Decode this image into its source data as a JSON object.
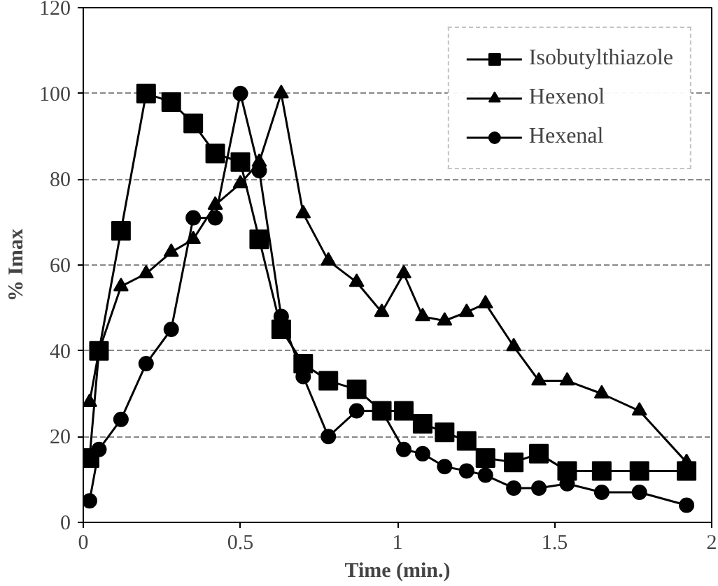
{
  "chart_data": {
    "type": "line",
    "xlabel": "Time (min.)",
    "ylabel": "% Imax",
    "x": [
      0.02,
      0.05,
      0.12,
      0.2,
      0.28,
      0.35,
      0.42,
      0.5,
      0.56,
      0.63,
      0.7,
      0.78,
      0.87,
      0.95,
      1.02,
      1.08,
      1.15,
      1.22,
      1.28,
      1.37,
      1.45,
      1.54,
      1.65,
      1.77,
      1.92
    ],
    "series": [
      {
        "name": "Isobutylthiazole",
        "color": "#000000",
        "marker": "square",
        "values": [
          15,
          40,
          68,
          100,
          98,
          93,
          86,
          84,
          66,
          45,
          37,
          33,
          31,
          26,
          26,
          23,
          21,
          19,
          15,
          14,
          16,
          12,
          12,
          12,
          12
        ]
      },
      {
        "name": "Hexenol",
        "color": "#000000",
        "marker": "triangle",
        "values": [
          28,
          40,
          55,
          58,
          63,
          66,
          74,
          79,
          84,
          100,
          72,
          61,
          56,
          49,
          58,
          48,
          47,
          49,
          51,
          41,
          33,
          33,
          30,
          26,
          14
        ]
      },
      {
        "name": "Hexenal",
        "color": "#000000",
        "marker": "circle",
        "values": [
          5,
          17,
          24,
          37,
          45,
          71,
          71,
          100,
          82,
          48,
          34,
          20,
          26,
          26,
          17,
          16,
          13,
          12,
          11,
          8,
          8,
          9,
          7,
          7,
          4
        ]
      }
    ],
    "xlim": [
      0,
      2
    ],
    "xticks": [
      0,
      0.5,
      1,
      1.5,
      2
    ],
    "ylim": [
      0,
      120
    ],
    "yticks": [
      0,
      20,
      40,
      60,
      80,
      100,
      120
    ],
    "grid": "y",
    "legend": "top right",
    "line_style": "solid"
  }
}
